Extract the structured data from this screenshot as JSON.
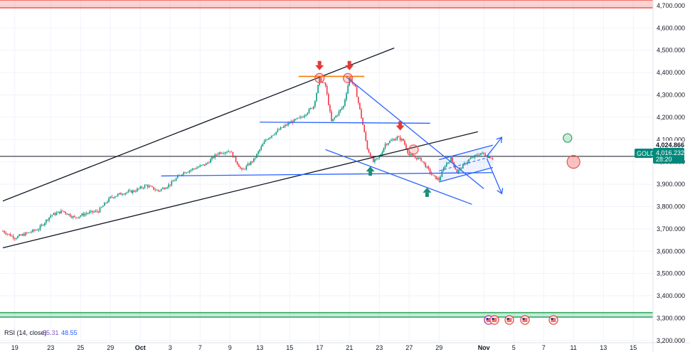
{
  "chart_data": {
    "type": "candlestick",
    "symbol": "GOLD",
    "ylim": [
      3190,
      4725
    ],
    "yticks": [
      4700,
      4600,
      4500,
      4400,
      4300,
      4200,
      4100,
      4000,
      3900,
      3800,
      3700,
      3600,
      3500,
      3400,
      3300,
      3200
    ],
    "ytick_labels": [
      "4,700.000",
      "4,600.000",
      "4,500.000",
      "4,400.000",
      "4,300.000",
      "4,200.000",
      "4,100.000",
      "4,000.000",
      "3,900.000",
      "3,800.000",
      "3,700.000",
      "3,600.000",
      "3,500.000",
      "3,400.000",
      "3,300.000",
      "3,200.000"
    ],
    "x_range": [
      0,
      232
    ],
    "xticks": [
      {
        "label": "19",
        "t": 4,
        "bold": false
      },
      {
        "label": "23",
        "t": 16,
        "bold": false
      },
      {
        "label": "25",
        "t": 26,
        "bold": false
      },
      {
        "label": "29",
        "t": 36,
        "bold": false
      },
      {
        "label": "Oct",
        "t": 46,
        "bold": true
      },
      {
        "label": "3",
        "t": 56,
        "bold": false
      },
      {
        "label": "7",
        "t": 66,
        "bold": false
      },
      {
        "label": "9",
        "t": 76,
        "bold": false
      },
      {
        "label": "13",
        "t": 86,
        "bold": false
      },
      {
        "label": "15",
        "t": 96,
        "bold": false
      },
      {
        "label": "17",
        "t": 106,
        "bold": false
      },
      {
        "label": "21",
        "t": 116,
        "bold": false
      },
      {
        "label": "23",
        "t": 126,
        "bold": false
      },
      {
        "label": "27",
        "t": 136,
        "bold": false
      },
      {
        "label": "29",
        "t": 146,
        "bold": false
      },
      {
        "label": "Nov",
        "t": 161,
        "bold": true
      },
      {
        "label": "5",
        "t": 171,
        "bold": false
      },
      {
        "label": "7",
        "t": 181,
        "bold": false
      },
      {
        "label": "11",
        "t": 191,
        "bold": false
      },
      {
        "label": "13",
        "t": 201,
        "bold": false
      },
      {
        "label": "15",
        "t": 211,
        "bold": false
      }
    ],
    "price_path": [
      [
        0,
        3690
      ],
      [
        4,
        3660
      ],
      [
        8,
        3680
      ],
      [
        12,
        3700
      ],
      [
        16,
        3760
      ],
      [
        20,
        3780
      ],
      [
        24,
        3750
      ],
      [
        28,
        3770
      ],
      [
        32,
        3780
      ],
      [
        36,
        3840
      ],
      [
        40,
        3860
      ],
      [
        44,
        3870
      ],
      [
        48,
        3895
      ],
      [
        52,
        3870
      ],
      [
        56,
        3900
      ],
      [
        60,
        3950
      ],
      [
        64,
        3970
      ],
      [
        68,
        3990
      ],
      [
        72,
        4040
      ],
      [
        76,
        4050
      ],
      [
        80,
        3960
      ],
      [
        84,
        4010
      ],
      [
        88,
        4100
      ],
      [
        92,
        4140
      ],
      [
        96,
        4175
      ],
      [
        100,
        4200
      ],
      [
        104,
        4250
      ],
      [
        106,
        4370
      ],
      [
        108,
        4340
      ],
      [
        110,
        4180
      ],
      [
        114,
        4250
      ],
      [
        116,
        4375
      ],
      [
        118,
        4330
      ],
      [
        120,
        4200
      ],
      [
        122,
        4060
      ],
      [
        124,
        4000
      ],
      [
        126,
        4020
      ],
      [
        128,
        4080
      ],
      [
        132,
        4110
      ],
      [
        134,
        4095
      ],
      [
        136,
        4030
      ],
      [
        140,
        4010
      ],
      [
        144,
        3935
      ],
      [
        146,
        3920
      ],
      [
        148,
        3985
      ],
      [
        150,
        4015
      ],
      [
        152,
        3955
      ],
      [
        156,
        4010
      ],
      [
        160,
        4040
      ],
      [
        164,
        4016
      ]
    ],
    "current_price": 4016.232,
    "current_price_label": "4,016.232",
    "current_countdown": "28:20",
    "last_close": 4024.866,
    "last_close_label": "4,024.866",
    "horizontal_levels": [
      {
        "name": "resistance-zone",
        "y_top": 4725,
        "y_bottom": 4690,
        "color": "#ef5350"
      },
      {
        "name": "support-zone",
        "y_top": 3325,
        "y_bottom": 3305,
        "color": "#26a65b"
      },
      {
        "name": "current-level-line",
        "value": 4024.866,
        "color": "#131722"
      }
    ],
    "trendlines": [
      {
        "name": "upper-rising-trendline",
        "color": "#131722",
        "t1": 0,
        "v1": 3825,
        "t2": 131,
        "v2": 4510
      },
      {
        "name": "lower-rising-trendline",
        "color": "#131722",
        "t1": 0,
        "v1": 3615,
        "t2": 159,
        "v2": 4135
      },
      {
        "name": "double-top-neckline",
        "color": "#f57c00",
        "t1": 99,
        "v1": 4383,
        "t2": 121,
        "v2": 4383
      },
      {
        "name": "horizontal-resistance",
        "color": "#2962ff",
        "t1": 86,
        "v1": 4178,
        "t2": 143,
        "v2": 4173
      },
      {
        "name": "horizontal-support",
        "color": "#2962ff",
        "t1": 53,
        "v1": 3937,
        "t2": 164,
        "v2": 3952
      },
      {
        "name": "falling-channel-top",
        "color": "#2962ff",
        "t1": 115,
        "v1": 4380,
        "t2": 161,
        "v2": 3880
      },
      {
        "name": "falling-channel-bottom",
        "color": "#2962ff",
        "t1": 108,
        "v1": 4055,
        "t2": 157,
        "v2": 3810
      },
      {
        "name": "rising-channel-top",
        "color": "#2962ff",
        "t1": 146,
        "v1": 4010,
        "t2": 164,
        "v2": 4075
      },
      {
        "name": "rising-channel-bottom",
        "color": "#2962ff",
        "t1": 146,
        "v1": 3910,
        "t2": 164,
        "v2": 3975
      }
    ],
    "projection_arrows": [
      {
        "name": "bullish-projection-arrow",
        "t1": 162,
        "v1": 4025,
        "t2": 167,
        "v2": 4110
      },
      {
        "name": "bearish-projection-arrow",
        "t1": 162,
        "v1": 4015,
        "t2": 167,
        "v2": 3858
      }
    ],
    "markers": [
      {
        "name": "sell-arrow-1",
        "kind": "down",
        "t": 106,
        "v": 4420
      },
      {
        "name": "sell-arrow-2",
        "kind": "down",
        "t": 116,
        "v": 4420
      },
      {
        "name": "sell-arrow-3",
        "kind": "down",
        "t": 133,
        "v": 4150
      },
      {
        "name": "buy-arrow-1",
        "kind": "up",
        "t": 123,
        "v": 3970
      },
      {
        "name": "buy-arrow-2",
        "kind": "up",
        "t": 142,
        "v": 3875
      }
    ],
    "circles": [
      {
        "name": "top-circle-1",
        "t": 106,
        "v": 4375,
        "color": "#ef5350"
      },
      {
        "name": "top-circle-2",
        "t": 115.5,
        "v": 4375,
        "color": "#ef5350"
      },
      {
        "name": "retest-circle",
        "t": 137.5,
        "v": 4055,
        "color": "#ef5350"
      },
      {
        "name": "target-up-circle",
        "t": 189,
        "v": 4107,
        "color": "#26a65b"
      },
      {
        "name": "target-down-circle",
        "t": 191,
        "v": 4000,
        "color": "#ef5350"
      }
    ],
    "rsi": {
      "label": "RSI (14, close)",
      "value1": "55.31",
      "value2": "48.55"
    },
    "colors": {
      "up": "#089981",
      "down": "#f23645",
      "accent": "#2962ff",
      "tag": "#00897b"
    }
  }
}
